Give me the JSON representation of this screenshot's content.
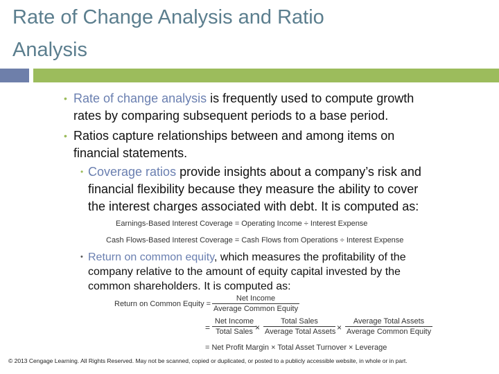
{
  "title": {
    "line1": "Rate of Change Analysis and Ratio",
    "line2": "Analysis"
  },
  "bullets": {
    "b1": {
      "highlight": "Rate of change analysis",
      "rest1": " is frequently used to compute growth",
      "line2": "rates by comparing subsequent periods to a base period."
    },
    "b2": {
      "line1": "Ratios capture relationships between and among items on",
      "line2": "financial statements."
    },
    "b3": {
      "highlight": "Coverage ratios",
      "rest1": " provide insights about a company’s risk and",
      "line2": "financial flexibility because they measure the ability to cover",
      "line3": "the interest charges associated with debt.  It is computed as:"
    },
    "b4": {
      "highlight": "Return on common equity",
      "rest1": ", which measures the profitability of the",
      "line2": "company relative to the amount of equity capital invested by the",
      "line3": "common shareholders. It is computed as:"
    }
  },
  "formulas": {
    "earnings_coverage": "Earnings-Based Interest Coverage = Operating Income ÷ Interest Expense",
    "cashflow_coverage": "Cash Flows-Based Interest Coverage = Cash Flows from Operations ÷ Interest Expense",
    "roce": {
      "label": "Return on Common Equity =",
      "num": "Net Income",
      "den": "Average Common Equity",
      "eq": "=",
      "f1_num": "Net Income",
      "f1_den": "Total Sales",
      "times": "×",
      "f2_num": "Total Sales",
      "f2_den": "Average Total Assets",
      "f3_num": "Average Total Assets",
      "f3_den": "Average Common Equity",
      "last": "= Net Profit Margin × Total Asset Turnover × Leverage"
    }
  },
  "footer": "© 2013 Cengage Learning. All Rights Reserved. May not be scanned, copied or duplicated, or posted to a publicly accessible website, in whole or in part."
}
